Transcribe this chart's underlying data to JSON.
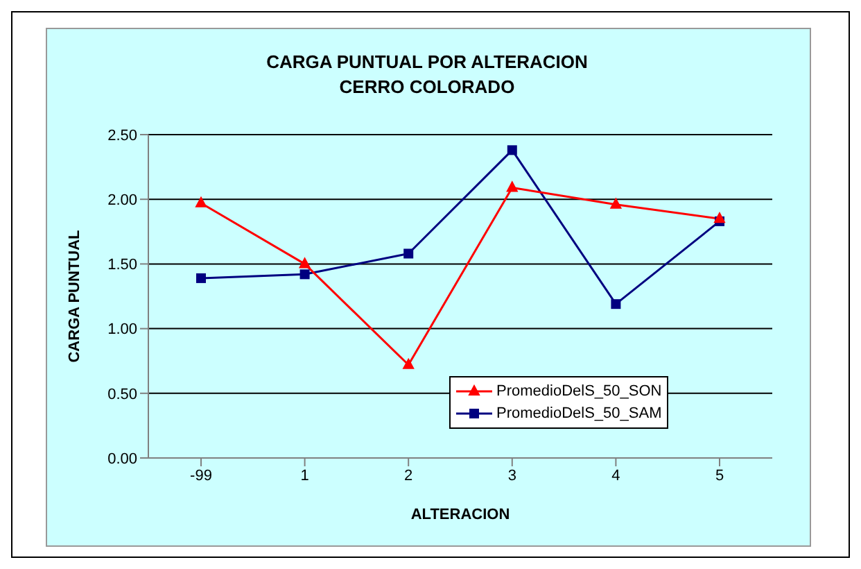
{
  "chart_data": {
    "type": "line",
    "title": "CARGA PUNTUAL POR ALTERACION\nCERRO COLORADO",
    "xlabel": "ALTERACION",
    "ylabel": "CARGA PUNTUAL",
    "categories": [
      "-99",
      "1",
      "2",
      "3",
      "4",
      "5"
    ],
    "series": [
      {
        "name": "PromedioDelS_50_SON",
        "color": "#ff0000",
        "marker": "triangle",
        "values": [
          1.97,
          1.5,
          0.72,
          2.09,
          1.96,
          1.85
        ]
      },
      {
        "name": "PromedioDelS_50_SAM",
        "color": "#000080",
        "marker": "square",
        "values": [
          1.39,
          1.42,
          1.58,
          2.38,
          1.19,
          1.83
        ]
      }
    ],
    "ylim": [
      0,
      2.5
    ],
    "yticks": [
      {
        "value": 0,
        "label": "0.00"
      },
      {
        "value": 0.5,
        "label": "0.50"
      },
      {
        "value": 1,
        "label": "1.00"
      },
      {
        "value": 1.5,
        "label": "1.50"
      },
      {
        "value": 2,
        "label": "2.00"
      },
      {
        "value": 2.5,
        "label": "2.50"
      }
    ],
    "grid": "y",
    "legend": "bottom",
    "line_style": "solid"
  }
}
